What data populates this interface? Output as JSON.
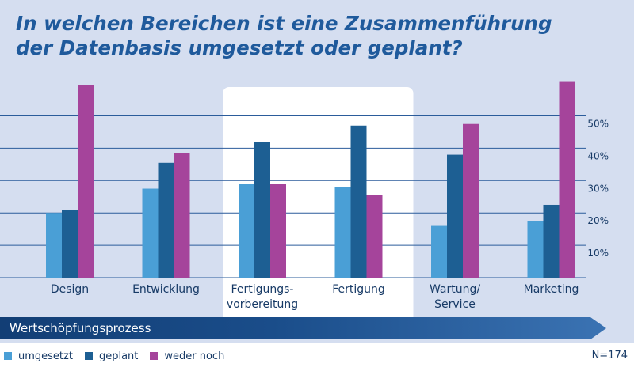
{
  "title_line1": "In welchen Bereichen ist eine Zusammenführung",
  "title_line2": "der Datenbasis umgesetzt oder geplant?",
  "colors": {
    "umgesetzt": "#4a9fd6",
    "geplant": "#1d5f93",
    "weder_noch": "#a5449b",
    "gridline": "#2b5c9b",
    "panel": "#d5def0"
  },
  "chart_data": {
    "type": "bar",
    "categories": [
      "Design",
      "Entwicklung",
      "Fertigungs-\nvorbereitung",
      "Fertigung",
      "Wartung/\nService",
      "Marketing"
    ],
    "series": [
      {
        "name": "umgesetzt",
        "values": [
          20,
          27.5,
          29,
          28,
          16,
          17.5
        ]
      },
      {
        "name": "geplant",
        "values": [
          21,
          35.5,
          42,
          47,
          38,
          22.5
        ]
      },
      {
        "name": "weder noch",
        "values": [
          59.5,
          38.5,
          29,
          25.5,
          47.5,
          60.5
        ]
      }
    ],
    "highlighted_categories": [
      "Fertigungs-\nvorbereitung",
      "Fertigung"
    ],
    "y_ticks": [
      10,
      20,
      30,
      40,
      50
    ],
    "y_tick_labels": [
      "10%",
      "20%",
      "30%",
      "40%",
      "50%"
    ],
    "ylim": [
      0,
      60
    ],
    "xlabel": "Wertschöpfungsprozess",
    "ylabel": "",
    "legend": [
      "umgesetzt",
      "geplant",
      "weder noch"
    ],
    "legend_position": "bottom-left",
    "n_label": "N=174"
  }
}
